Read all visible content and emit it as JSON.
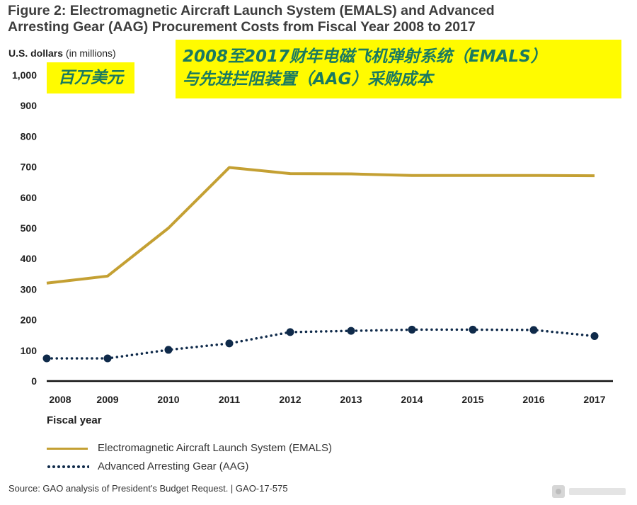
{
  "header": {
    "title_line1": "Figure 2: Electromagnetic Aircraft Launch System (EMALS) and Advanced",
    "title_line2": "Arresting Gear (AAG) Procurement Costs from Fiscal Year 2008 to 2017",
    "y_unit_main": "U.S. dollars",
    "y_unit_sub": "(in millions)"
  },
  "annotations": {
    "unit_cn": "百万美元",
    "title_cn_line1": "2008至2017财年电磁飞机弹射系统（EMALS）",
    "title_cn_line2": "与先进拦阻装置（AAG）采购成本",
    "highlight_color": "#fffb00",
    "text_color": "#1a7a60"
  },
  "chart_data": {
    "type": "line",
    "title": "Figure 2: Electromagnetic Aircraft Launch System (EMALS) and Advanced Arresting Gear (AAG) Procurement Costs from Fiscal Year 2008 to 2017",
    "xlabel": "Fiscal year",
    "ylabel": "U.S. dollars (in millions)",
    "x": [
      "2008",
      "2009",
      "2010",
      "2011",
      "2012",
      "2013",
      "2014",
      "2015",
      "2016",
      "2017"
    ],
    "ylim": [
      0,
      1000
    ],
    "yticks": [
      0,
      100,
      200,
      300,
      400,
      500,
      600,
      700,
      800,
      900,
      1000
    ],
    "ytick_labels": [
      "0",
      "100",
      "200",
      "300",
      "400",
      "500",
      "600",
      "700",
      "800",
      "900",
      "1,000"
    ],
    "grid": false,
    "legend_position": "bottom",
    "series": [
      {
        "name": "Electromagnetic Aircraft Launch System (EMALS)",
        "style": "solid",
        "color": "#c4a033",
        "values": [
          320,
          343,
          500,
          698,
          678,
          677,
          672,
          672,
          672,
          671
        ]
      },
      {
        "name": "Advanced Arresting Gear (AAG)",
        "style": "dotted",
        "color": "#0f2a4a",
        "values": [
          74,
          74,
          102,
          123,
          160,
          164,
          168,
          168,
          167,
          147
        ]
      }
    ]
  },
  "footer": {
    "source": "Source: GAO analysis of President's Budget Request.  |  GAO-17-575"
  }
}
